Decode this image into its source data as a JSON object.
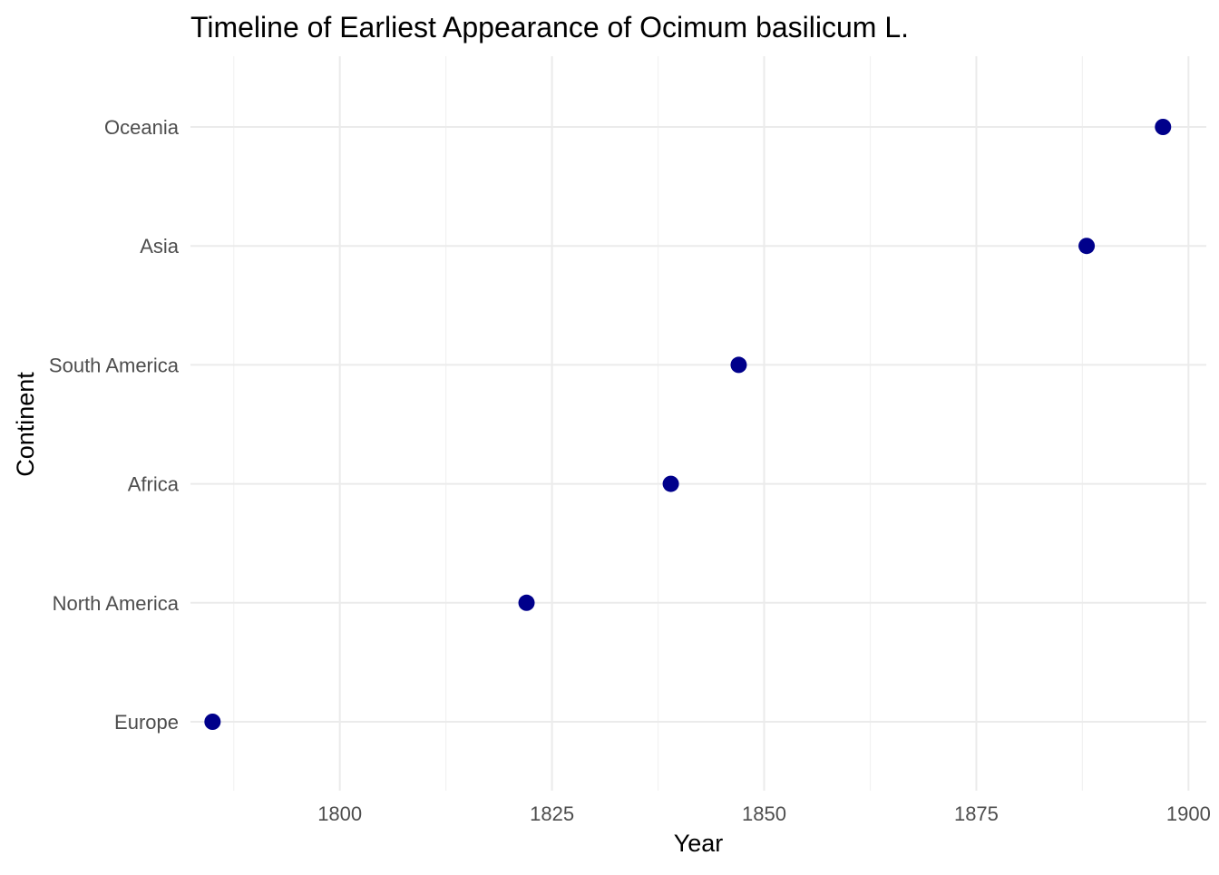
{
  "chart_data": {
    "type": "scatter",
    "title": "Timeline of Earliest Appearance of Ocimum basilicum L.",
    "xlabel": "Year",
    "ylabel": "Continent",
    "x_ticks": [
      1800,
      1825,
      1850,
      1875,
      1900
    ],
    "categories": [
      "Europe",
      "North America",
      "Africa",
      "South America",
      "Asia",
      "Oceania"
    ],
    "points": [
      {
        "category": "Europe",
        "year": 1785
      },
      {
        "category": "North America",
        "year": 1822
      },
      {
        "category": "Africa",
        "year": 1839
      },
      {
        "category": "South America",
        "year": 1847
      },
      {
        "category": "Asia",
        "year": 1888
      },
      {
        "category": "Oceania",
        "year": 1897
      }
    ],
    "point_color": "#00008b",
    "grid": true,
    "legend": "none"
  }
}
